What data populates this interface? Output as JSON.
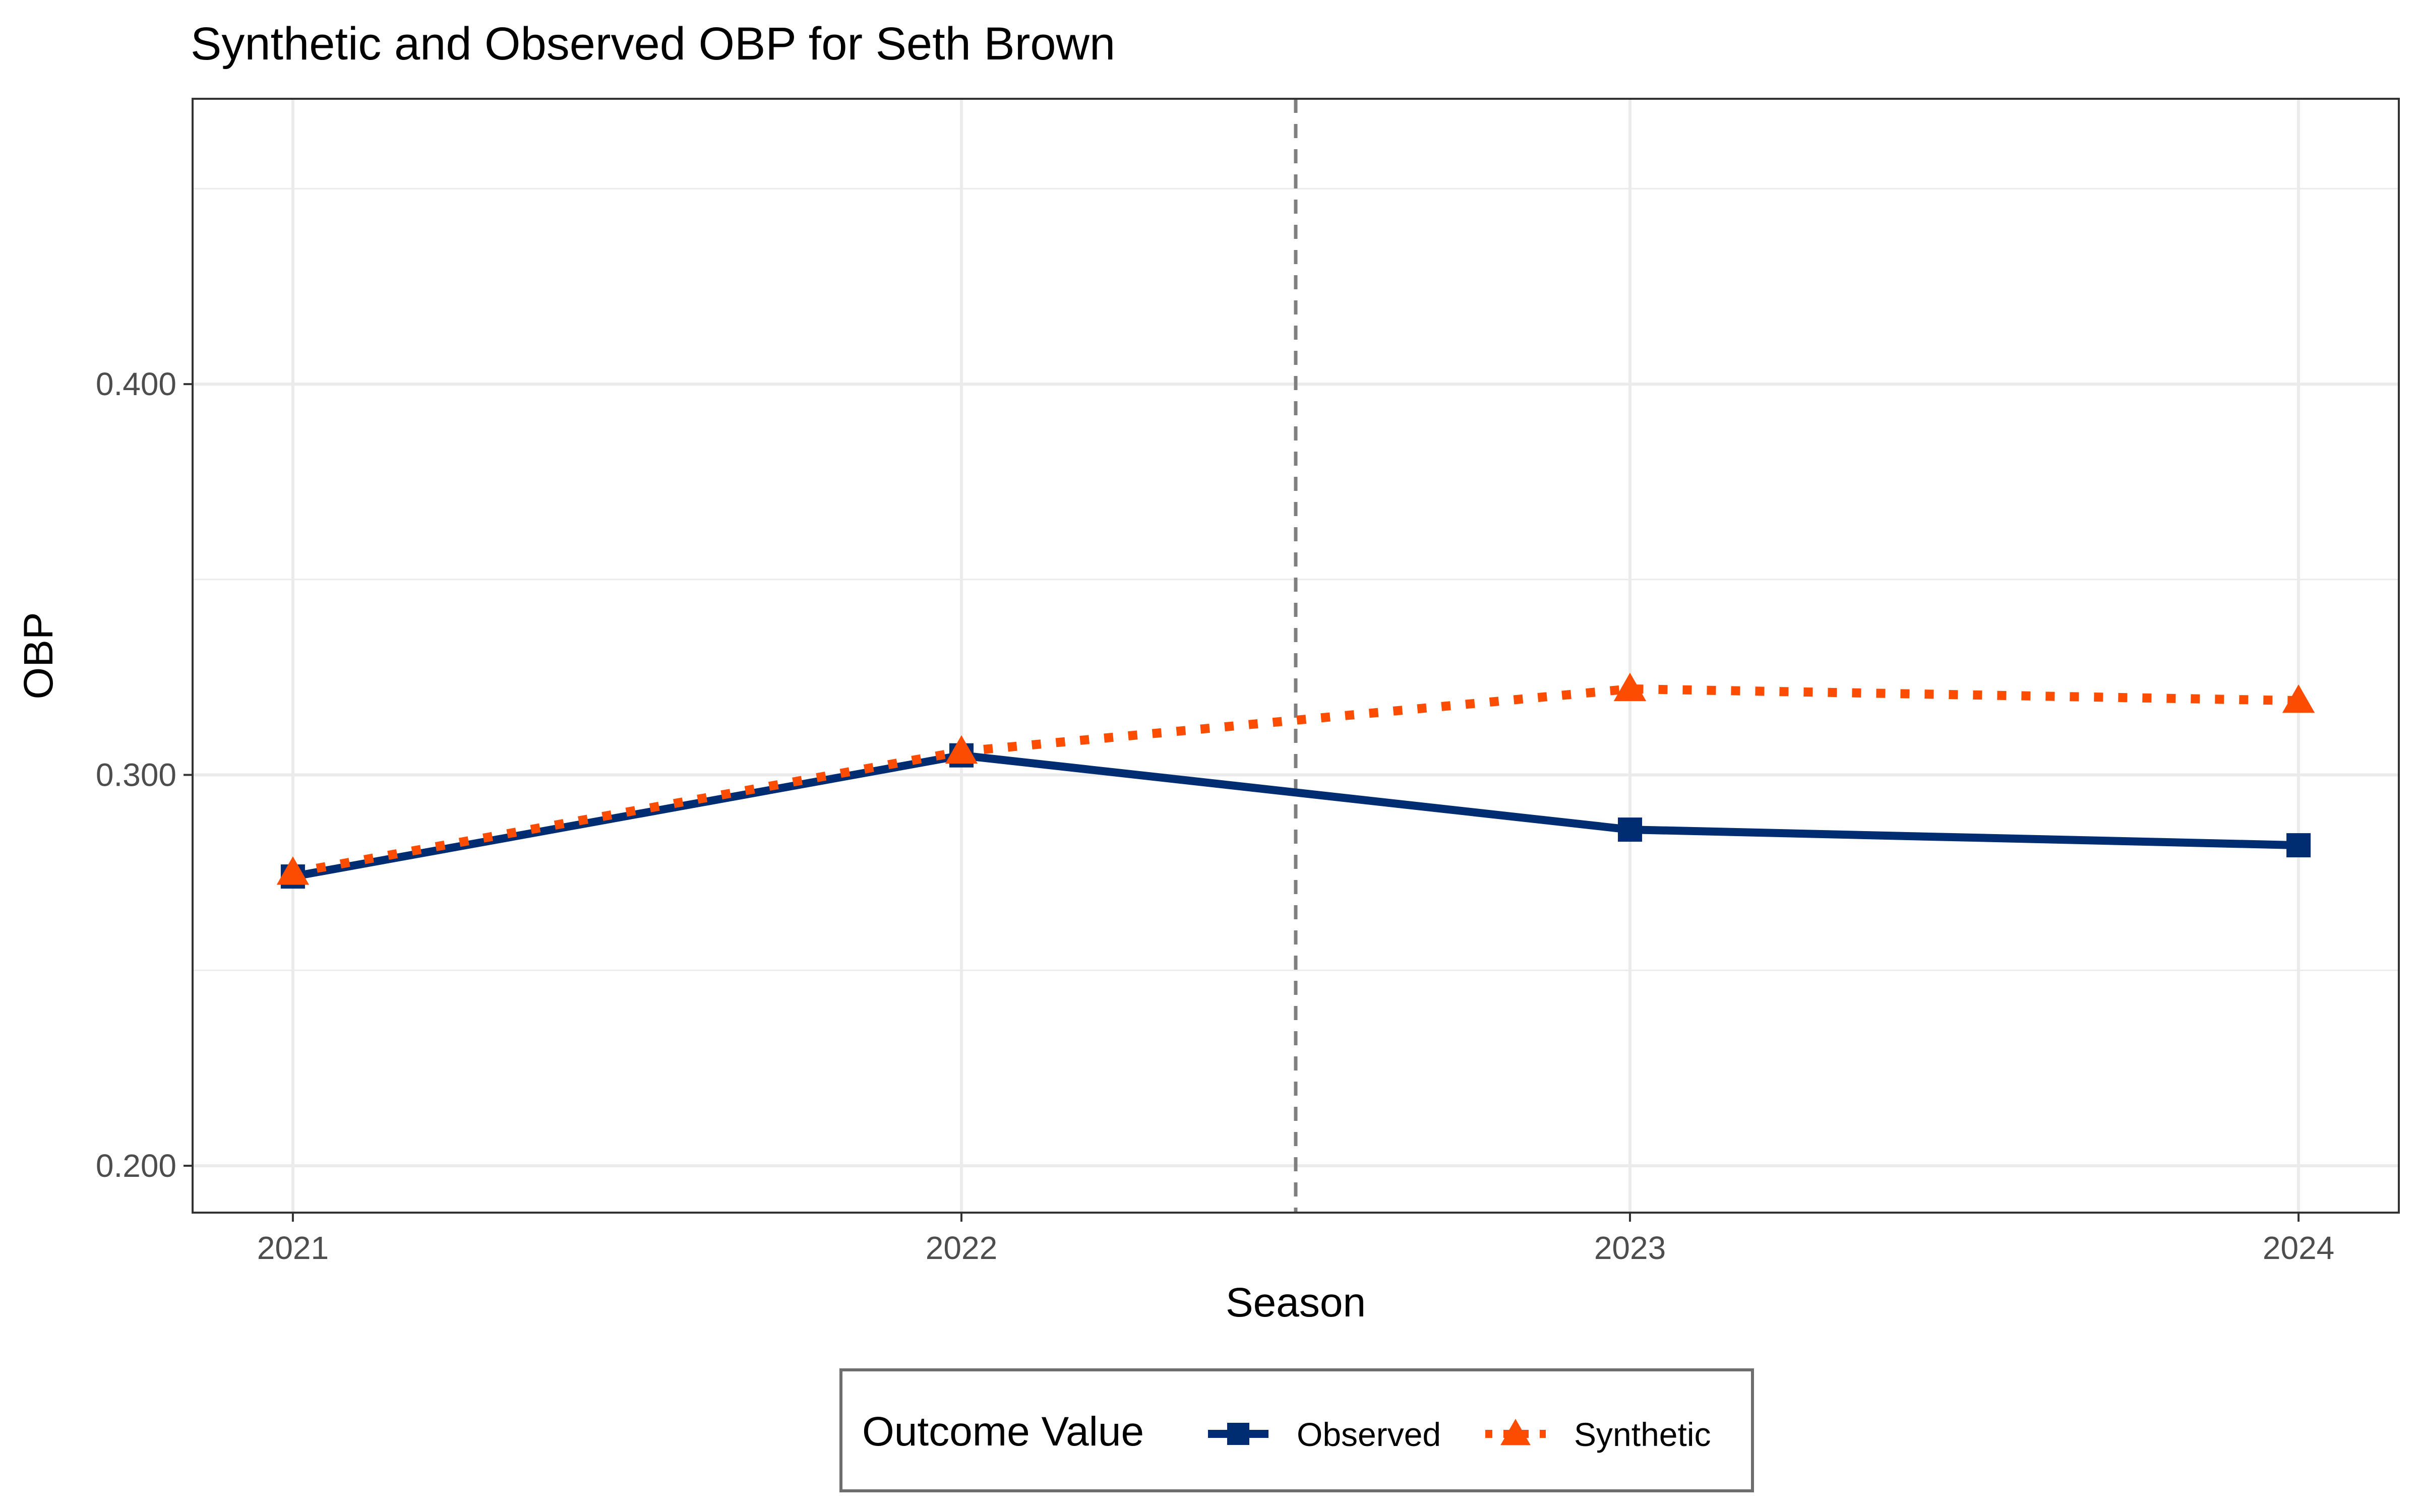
{
  "chart_data": {
    "type": "line",
    "title": "Synthetic and Observed OBP for Seth Brown",
    "xlabel": "Season",
    "ylabel": "OBP",
    "x": [
      2021,
      2022,
      2023,
      2024
    ],
    "xlim": [
      2020.85,
      2024.15
    ],
    "ylim": [
      0.188,
      0.473
    ],
    "x_ticks": [
      "2021",
      "2022",
      "2023",
      "2024"
    ],
    "y_ticks": [
      "0.200",
      "0.300",
      "0.400"
    ],
    "y_tick_values": [
      0.2,
      0.3,
      0.4
    ],
    "y_minor_grid": [
      0.25,
      0.35,
      0.45
    ],
    "treatment_line_x": 2022.5,
    "grid": true,
    "legend": {
      "title": "Outcome Value",
      "position": "bottom"
    },
    "series": [
      {
        "name": "Observed",
        "values": [
          0.274,
          0.305,
          0.286,
          0.282
        ],
        "color": "#002d72",
        "line_style": "solid",
        "marker": "square"
      },
      {
        "name": "Synthetic",
        "values": [
          0.275,
          0.306,
          0.322,
          0.319
        ],
        "color": "#fc4c02",
        "line_style": "dotted",
        "marker": "triangle"
      }
    ]
  }
}
